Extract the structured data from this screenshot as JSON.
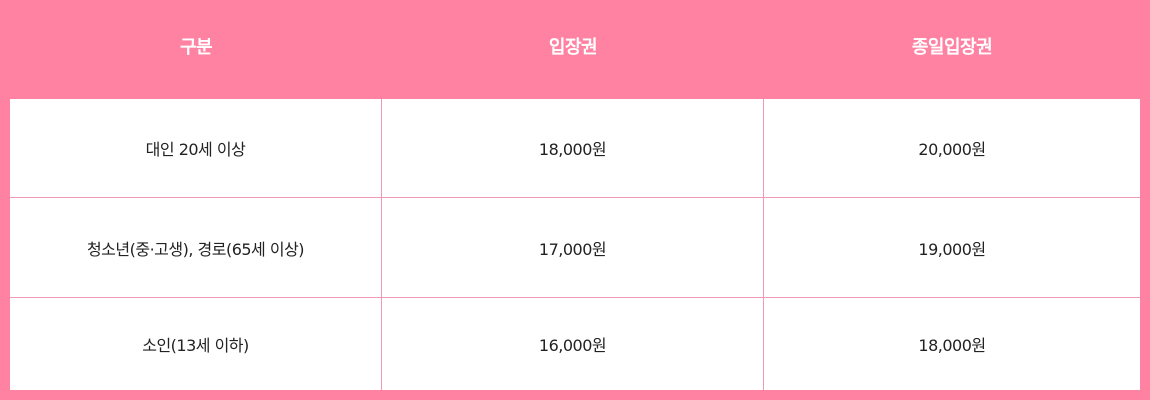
{
  "colors": {
    "background": "#ff82a2",
    "header_text": "#ffffff",
    "cell_background": "#ffffff",
    "cell_border": "#ef9ab5",
    "body_text": "#222222"
  },
  "table": {
    "headers": [
      "구분",
      "입장권",
      "종일입장권"
    ],
    "rows": [
      [
        "대인 20세 이상",
        "18,000원",
        "20,000원"
      ],
      [
        "청소년(중·고생), 경로(65세 이상)",
        "17,000원",
        "19,000원"
      ],
      [
        "소인(13세 이하)",
        "16,000원",
        "18,000원"
      ]
    ]
  }
}
